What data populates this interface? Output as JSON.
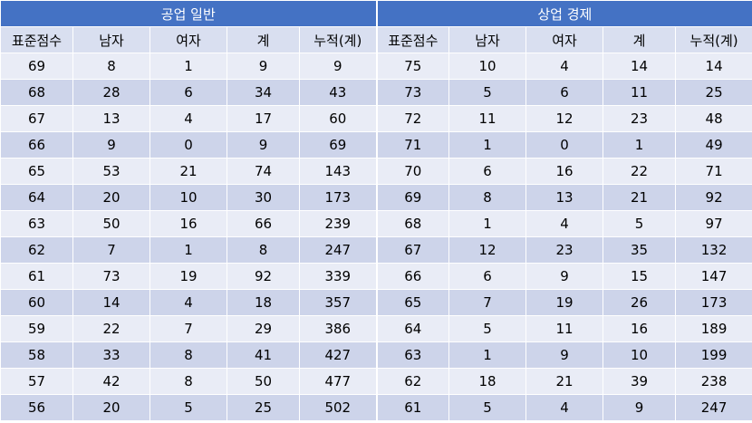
{
  "groups": [
    "공업 일반",
    "상업 경제"
  ],
  "columns": [
    "표준점수",
    "남자",
    "여자",
    "계",
    "누적(계)"
  ],
  "left_rows": [
    [
      "69",
      "8",
      "1",
      "9",
      "9"
    ],
    [
      "68",
      "28",
      "6",
      "34",
      "43"
    ],
    [
      "67",
      "13",
      "4",
      "17",
      "60"
    ],
    [
      "66",
      "9",
      "0",
      "9",
      "69"
    ],
    [
      "65",
      "53",
      "21",
      "74",
      "143"
    ],
    [
      "64",
      "20",
      "10",
      "30",
      "173"
    ],
    [
      "63",
      "50",
      "16",
      "66",
      "239"
    ],
    [
      "62",
      "7",
      "1",
      "8",
      "247"
    ],
    [
      "61",
      "73",
      "19",
      "92",
      "339"
    ],
    [
      "60",
      "14",
      "4",
      "18",
      "357"
    ],
    [
      "59",
      "22",
      "7",
      "29",
      "386"
    ],
    [
      "58",
      "33",
      "8",
      "41",
      "427"
    ],
    [
      "57",
      "42",
      "8",
      "50",
      "477"
    ],
    [
      "56",
      "20",
      "5",
      "25",
      "502"
    ]
  ],
  "right_rows": [
    [
      "75",
      "10",
      "4",
      "14",
      "14"
    ],
    [
      "73",
      "5",
      "6",
      "11",
      "25"
    ],
    [
      "72",
      "11",
      "12",
      "23",
      "48"
    ],
    [
      "71",
      "1",
      "0",
      "1",
      "49"
    ],
    [
      "70",
      "6",
      "16",
      "22",
      "71"
    ],
    [
      "69",
      "8",
      "13",
      "21",
      "92"
    ],
    [
      "68",
      "1",
      "4",
      "5",
      "97"
    ],
    [
      "67",
      "12",
      "23",
      "35",
      "132"
    ],
    [
      "66",
      "6",
      "9",
      "15",
      "147"
    ],
    [
      "65",
      "7",
      "19",
      "26",
      "173"
    ],
    [
      "64",
      "5",
      "11",
      "16",
      "189"
    ],
    [
      "63",
      "1",
      "9",
      "10",
      "199"
    ],
    [
      "62",
      "18",
      "21",
      "39",
      "238"
    ],
    [
      "61",
      "5",
      "4",
      "9",
      "247"
    ]
  ]
}
